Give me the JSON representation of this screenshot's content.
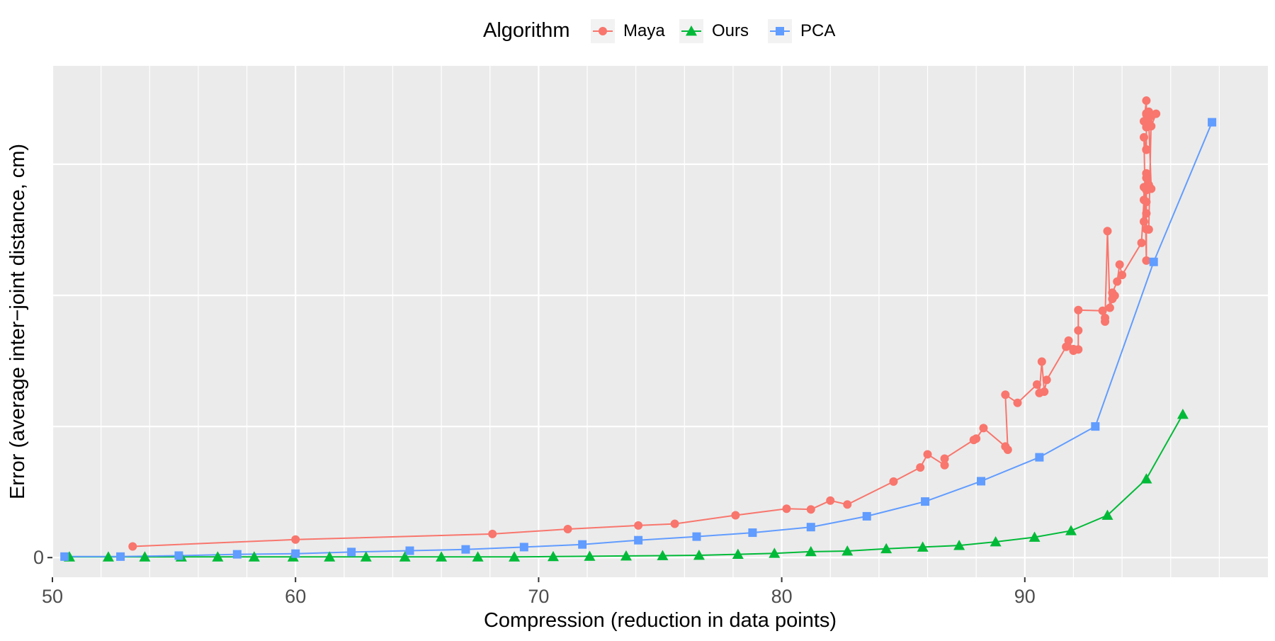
{
  "chart_data": {
    "type": "line",
    "xlabel": "Compression (reduction in data points)",
    "ylabel": "Error (average inter−joint distance, cm)",
    "xlim": [
      50,
      100
    ],
    "ylim": [
      -0.06,
      1.5
    ],
    "x_ticks": [
      50,
      60,
      70,
      80,
      90
    ],
    "x_tick_labels": [
      "50",
      "60",
      "70",
      "80",
      "90"
    ],
    "y_ticks": [
      0
    ],
    "y_tick_labels": [
      "0"
    ],
    "y_major_gridlines": [
      0,
      0.4,
      0.8,
      1.2,
      1.6
    ],
    "x_minor_gridlines": [
      52,
      54,
      56,
      58,
      62,
      64,
      66,
      68,
      72,
      74,
      76,
      78,
      82,
      84,
      86,
      88,
      92,
      94,
      96,
      98
    ],
    "grid": true,
    "legend": {
      "title": "Algorithm",
      "position": "top",
      "entries": [
        "Maya",
        "Ours",
        "PCA"
      ]
    },
    "series": [
      {
        "name": "Maya",
        "color": "#F8766D",
        "marker": "circle",
        "points": [
          [
            53.3,
            0.034
          ],
          [
            60.0,
            0.055
          ],
          [
            68.1,
            0.072
          ],
          [
            71.2,
            0.087
          ],
          [
            74.1,
            0.098
          ],
          [
            75.6,
            0.103
          ],
          [
            78.1,
            0.129
          ],
          [
            80.2,
            0.149
          ],
          [
            81.2,
            0.147
          ],
          [
            82.0,
            0.174
          ],
          [
            82.7,
            0.162
          ],
          [
            84.6,
            0.232
          ],
          [
            85.7,
            0.275
          ],
          [
            86.0,
            0.315
          ],
          [
            86.7,
            0.282
          ],
          [
            86.7,
            0.302
          ],
          [
            87.9,
            0.359
          ],
          [
            88.0,
            0.363
          ],
          [
            88.3,
            0.395
          ],
          [
            89.2,
            0.339
          ],
          [
            89.3,
            0.329
          ],
          [
            89.2,
            0.497
          ],
          [
            89.7,
            0.472
          ],
          [
            90.5,
            0.528
          ],
          [
            90.6,
            0.502
          ],
          [
            90.7,
            0.598
          ],
          [
            90.8,
            0.506
          ],
          [
            90.9,
            0.542
          ],
          [
            91.7,
            0.643
          ],
          [
            91.8,
            0.662
          ],
          [
            92.0,
            0.631
          ],
          [
            92.0,
            0.636
          ],
          [
            92.2,
            0.635
          ],
          [
            92.2,
            0.693
          ],
          [
            92.2,
            0.755
          ],
          [
            93.2,
            0.753
          ],
          [
            93.3,
            0.72
          ],
          [
            93.3,
            0.731
          ],
          [
            93.4,
            0.996
          ],
          [
            93.5,
            0.762
          ],
          [
            93.6,
            0.789
          ],
          [
            93.7,
            0.799
          ],
          [
            93.6,
            0.808
          ],
          [
            93.8,
            0.842
          ],
          [
            93.9,
            0.894
          ],
          [
            94.0,
            0.862
          ],
          [
            94.8,
            0.96
          ],
          [
            94.9,
            1.091
          ],
          [
            95.0,
            1.085
          ],
          [
            94.9,
            1.025
          ],
          [
            94.9,
            1.13
          ],
          [
            95.0,
            1.172
          ],
          [
            95.0,
            1.121
          ],
          [
            95.0,
            0.906
          ],
          [
            94.9,
            1.282
          ],
          [
            95.0,
            1.245
          ],
          [
            95.0,
            1.244
          ],
          [
            95.0,
            1.313
          ],
          [
            95.2,
            1.347
          ],
          [
            95.1,
            1.001
          ],
          [
            95.0,
            1.002
          ],
          [
            95.0,
            1.05
          ],
          [
            95.0,
            1.158
          ],
          [
            95.1,
            1.128
          ],
          [
            95.1,
            1.137
          ],
          [
            95.2,
            1.125
          ],
          [
            95.1,
            1.326
          ],
          [
            95.0,
            1.355
          ],
          [
            95.0,
            1.394
          ],
          [
            94.9,
            1.331
          ],
          [
            95.0,
            1.352
          ],
          [
            95.1,
            1.36
          ],
          [
            95.1,
            1.318
          ],
          [
            95.2,
            1.316
          ],
          [
            95.4,
            1.354
          ]
        ]
      },
      {
        "name": "Ours",
        "color": "#00BA38",
        "marker": "triangle",
        "points": [
          [
            50.7,
            0.002
          ],
          [
            52.3,
            0.002
          ],
          [
            53.8,
            0.002
          ],
          [
            55.3,
            0.002
          ],
          [
            56.8,
            0.002
          ],
          [
            58.3,
            0.002
          ],
          [
            59.9,
            0.002
          ],
          [
            61.4,
            0.002
          ],
          [
            62.9,
            0.002
          ],
          [
            64.5,
            0.002
          ],
          [
            66.0,
            0.002
          ],
          [
            67.5,
            0.002
          ],
          [
            69.0,
            0.002
          ],
          [
            70.6,
            0.003
          ],
          [
            72.1,
            0.004
          ],
          [
            73.6,
            0.005
          ],
          [
            75.1,
            0.006
          ],
          [
            76.6,
            0.007
          ],
          [
            78.2,
            0.01
          ],
          [
            79.7,
            0.013
          ],
          [
            81.2,
            0.018
          ],
          [
            82.7,
            0.02
          ],
          [
            84.3,
            0.027
          ],
          [
            85.8,
            0.032
          ],
          [
            87.3,
            0.037
          ],
          [
            88.8,
            0.048
          ],
          [
            90.4,
            0.062
          ],
          [
            91.9,
            0.082
          ],
          [
            93.4,
            0.129
          ],
          [
            95.0,
            0.24
          ],
          [
            96.5,
            0.437
          ]
        ]
      },
      {
        "name": "PCA",
        "color": "#619CFF",
        "marker": "square",
        "points": [
          [
            50.5,
            0.003
          ],
          [
            52.8,
            0.003
          ],
          [
            55.2,
            0.006
          ],
          [
            57.6,
            0.01
          ],
          [
            60.0,
            0.012
          ],
          [
            62.3,
            0.017
          ],
          [
            64.7,
            0.021
          ],
          [
            67.0,
            0.025
          ],
          [
            69.4,
            0.032
          ],
          [
            71.8,
            0.04
          ],
          [
            74.1,
            0.053
          ],
          [
            76.5,
            0.064
          ],
          [
            78.8,
            0.076
          ],
          [
            81.2,
            0.093
          ],
          [
            83.5,
            0.126
          ],
          [
            85.9,
            0.171
          ],
          [
            88.2,
            0.233
          ],
          [
            90.6,
            0.306
          ],
          [
            92.9,
            0.4
          ],
          [
            95.3,
            0.902
          ],
          [
            97.7,
            1.328
          ]
        ]
      }
    ]
  }
}
